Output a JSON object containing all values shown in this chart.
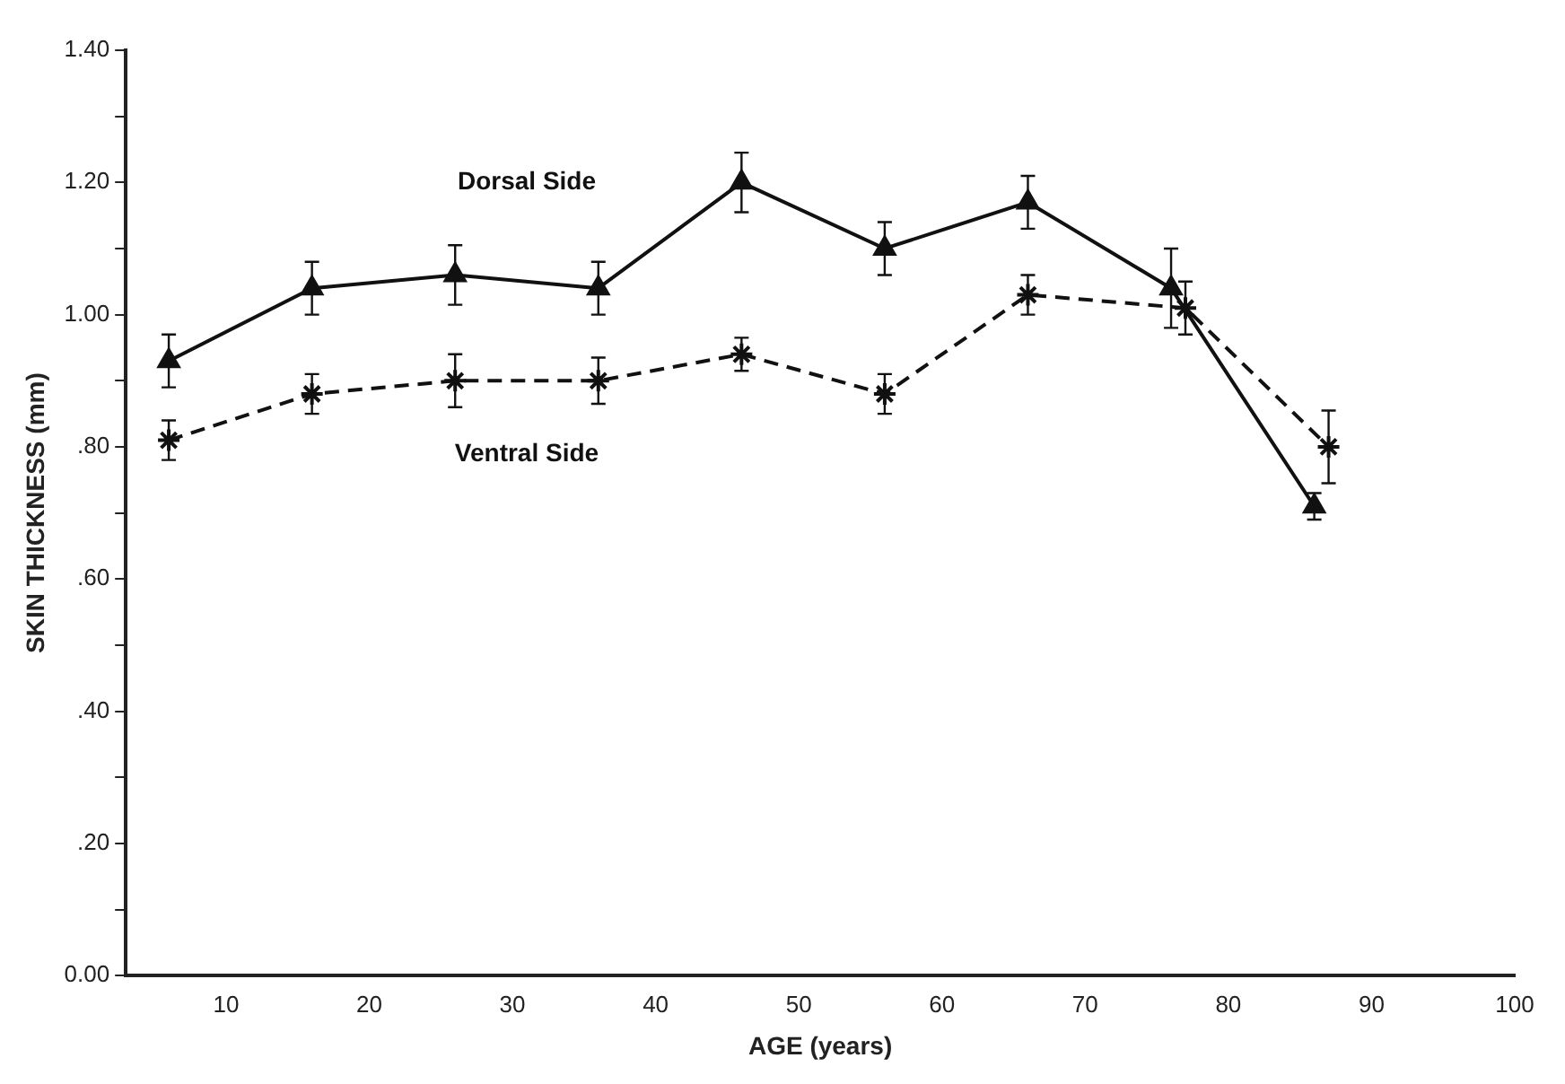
{
  "chart_data": {
    "type": "line",
    "xlabel": "AGE (years)",
    "ylabel": "SKIN THICKNESS (mm)",
    "xlim": [
      3,
      100
    ],
    "xticks": [
      10,
      20,
      30,
      40,
      50,
      60,
      70,
      80,
      90,
      100
    ],
    "ylim": [
      0,
      1.4
    ],
    "yticks": [
      {
        "value": 0,
        "label": "0.00"
      },
      {
        "value": 0.1,
        "label": null
      },
      {
        "value": 0.2,
        "label": ".20"
      },
      {
        "value": 0.3,
        "label": null
      },
      {
        "value": 0.4,
        "label": ".40"
      },
      {
        "value": 0.5,
        "label": null
      },
      {
        "value": 0.6,
        "label": ".60"
      },
      {
        "value": 0.7,
        "label": null
      },
      {
        "value": 0.8,
        "label": ".80"
      },
      {
        "value": 0.9,
        "label": null
      },
      {
        "value": 1.0,
        "label": "1.00"
      },
      {
        "value": 1.1,
        "label": null
      },
      {
        "value": 1.2,
        "label": "1.20"
      },
      {
        "value": 1.3,
        "label": null
      },
      {
        "value": 1.4,
        "label": "1.40"
      }
    ],
    "grid": false,
    "legend": false,
    "series": [
      {
        "name": "Dorsal Side",
        "color": "#111111",
        "marker": "triangle",
        "line_style": "solid",
        "x": [
          6,
          16,
          26,
          36,
          46,
          56,
          66,
          76,
          86
        ],
        "values": [
          0.93,
          1.04,
          1.06,
          1.04,
          1.2,
          1.1,
          1.17,
          1.04,
          0.71
        ],
        "errors": [
          0.04,
          0.04,
          0.045,
          0.04,
          0.045,
          0.04,
          0.04,
          0.06,
          0.02
        ]
      },
      {
        "name": "Ventral Side",
        "color": "#111111",
        "marker": "cross",
        "line_style": "dashed",
        "x": [
          6,
          16,
          26,
          36,
          46,
          56,
          66,
          77,
          87
        ],
        "values": [
          0.81,
          0.88,
          0.9,
          0.9,
          0.94,
          0.88,
          1.03,
          1.01,
          0.8
        ],
        "errors": [
          0.03,
          0.03,
          0.04,
          0.035,
          0.025,
          0.03,
          0.03,
          0.04,
          0.055
        ]
      }
    ]
  }
}
